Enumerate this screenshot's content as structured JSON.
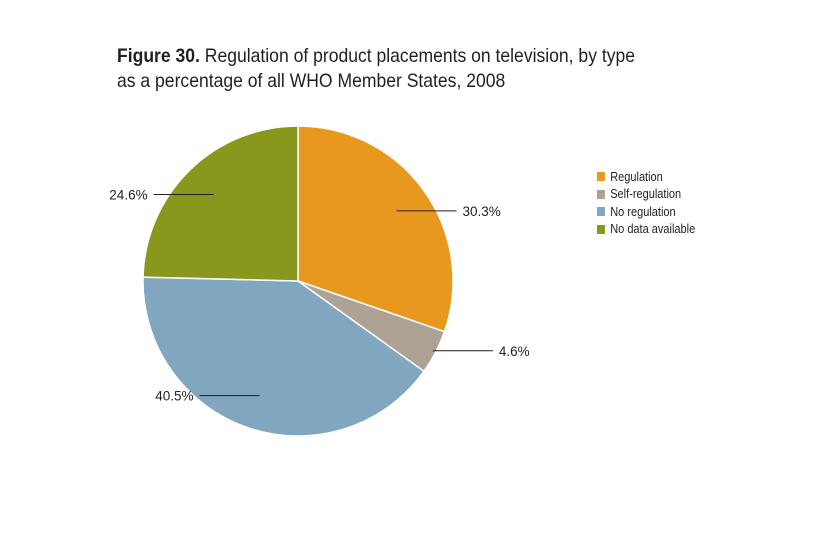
{
  "title": {
    "prefix": "Figure 30.",
    "line1": " Regulation of product placements on television, by type",
    "line2": "as a percentage of all WHO Member States, 2008"
  },
  "chart_data": {
    "type": "pie",
    "title": "Figure 30. Regulation of product placements on television, by type as a percentage of all WHO Member States, 2008",
    "slices": [
      {
        "name": "Regulation",
        "value": 30.3,
        "label": "30.3%",
        "color": "#e8981f"
      },
      {
        "name": "Self-regulation",
        "value": 4.6,
        "label": "4.6%",
        "color": "#ada294"
      },
      {
        "name": "No regulation",
        "value": 40.5,
        "label": "40.5%",
        "color": "#81a6c0"
      },
      {
        "name": "No data available",
        "value": 24.6,
        "label": "24.6%",
        "color": "#89981c"
      }
    ],
    "legend_position": "right"
  }
}
